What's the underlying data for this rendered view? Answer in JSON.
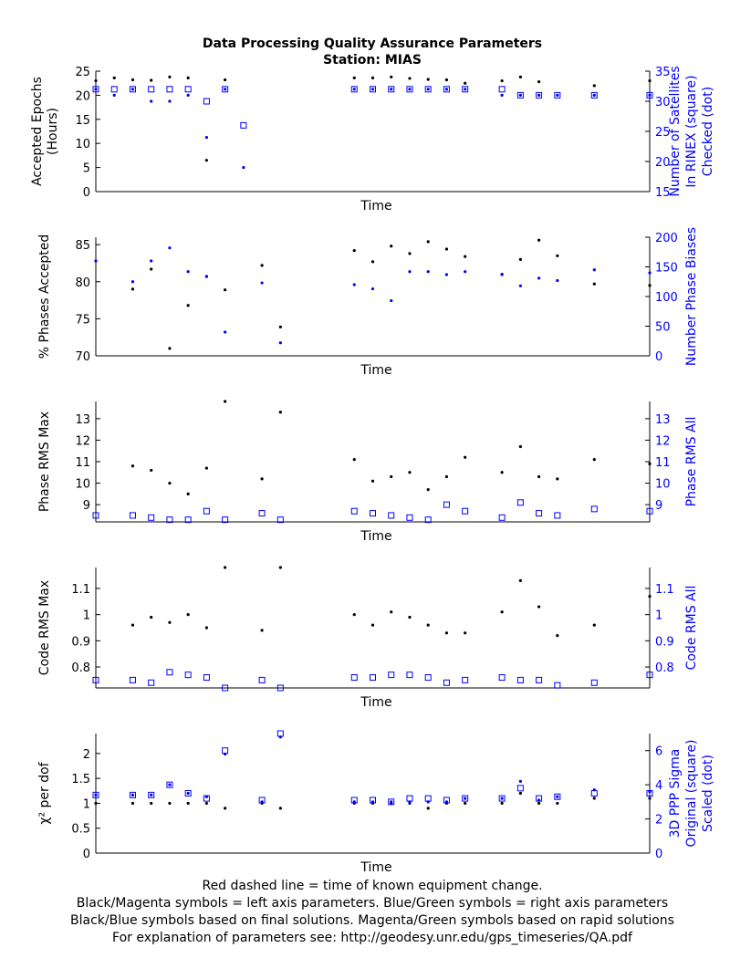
{
  "title_line1": "Data Processing Quality Assurance Parameters",
  "title_line2": "Station: MIAS",
  "footer": [
    "Red dashed line = time of known equipment change.",
    "Black/Magenta symbols = left axis parameters. Blue/Green symbols = right axis parameters",
    "Black/Blue symbols based on final solutions.  Magenta/Green symbols based on rapid solutions",
    "For explanation of parameters see: http://geodesy.unr.edu/gps_timeseries/QA.pdf"
  ],
  "colors": {
    "left": "#000000",
    "right": "#0000ff",
    "axis": "#000000"
  },
  "chart_data": [
    {
      "type": "scatter",
      "xlabel": "Time",
      "ylabel_left": [
        "Accepted Epochs",
        "(Hours)"
      ],
      "ylabel_right": [
        "Number of Satellites",
        "In RINEX (square)",
        "Checked (dot)"
      ],
      "ylim_left": [
        0,
        25
      ],
      "yticks_left": [
        0,
        5,
        10,
        15,
        20,
        25
      ],
      "ylim_right": [
        15,
        35
      ],
      "yticks_right": [
        15,
        20,
        25,
        30,
        35
      ],
      "x": [
        0,
        1,
        2,
        3,
        4,
        5,
        6,
        7,
        8,
        14,
        15,
        16,
        17,
        18,
        19,
        20,
        22,
        23,
        24,
        25,
        27,
        30
      ],
      "series": [
        {
          "axis": "left",
          "marker": "dot",
          "values": [
            23.0,
            23.6,
            23.2,
            23.1,
            23.8,
            23.6,
            6.5,
            23.2,
            null,
            23.6,
            23.6,
            23.8,
            23.5,
            23.3,
            23.2,
            22.5,
            23.0,
            23.8,
            22.8,
            null,
            22.0,
            23.0
          ]
        },
        {
          "axis": "right",
          "marker": "square",
          "values": [
            32,
            32,
            32,
            32,
            32,
            32,
            30,
            32,
            26,
            32,
            32,
            32,
            32,
            32,
            32,
            32,
            32,
            31,
            31,
            31,
            31,
            31
          ]
        },
        {
          "axis": "right",
          "marker": "dot",
          "values": [
            32,
            31,
            32,
            30,
            30,
            31,
            24,
            32,
            19,
            32,
            32,
            32,
            32,
            32,
            32,
            32,
            31,
            31,
            31,
            31,
            31,
            31
          ]
        }
      ]
    },
    {
      "type": "scatter",
      "xlabel": "Time",
      "ylabel_left": [
        "% Phases Accepted"
      ],
      "ylabel_right": [
        "Number Phase Biases"
      ],
      "ylim_left": [
        70,
        86
      ],
      "yticks_left": [
        70,
        75,
        80,
        85
      ],
      "ylim_right": [
        0,
        200
      ],
      "yticks_right": [
        0,
        50,
        100,
        150,
        200
      ],
      "x": [
        0,
        2,
        3,
        4,
        5,
        6,
        7,
        9,
        10,
        14,
        15,
        16,
        17,
        18,
        19,
        20,
        22,
        23,
        24,
        25,
        27,
        30
      ],
      "series": [
        {
          "axis": "left",
          "marker": "dot",
          "values": [
            null,
            79.0,
            81.7,
            71.0,
            76.8,
            80.7,
            78.9,
            82.2,
            73.9,
            84.2,
            82.7,
            84.8,
            83.8,
            85.4,
            84.4,
            83.4,
            81.0,
            83.0,
            85.6,
            83.5,
            79.7,
            79.5
          ]
        },
        {
          "axis": "right",
          "marker": "dot",
          "values": [
            160,
            125,
            160,
            182,
            142,
            134,
            40,
            123,
            22,
            120,
            113,
            93,
            142,
            142,
            137,
            142,
            137,
            118,
            131,
            127,
            145,
            140
          ]
        }
      ]
    },
    {
      "type": "scatter",
      "xlabel": "Time",
      "ylabel_left": [
        "Phase RMS Max"
      ],
      "ylabel_right": [
        "Phase RMS All"
      ],
      "ylim_left": [
        8.2,
        13.8
      ],
      "yticks_left": [
        9,
        10,
        11,
        12,
        13
      ],
      "ylim_right": [
        8.2,
        13.8
      ],
      "yticks_right": [
        9,
        10,
        11,
        12,
        13
      ],
      "x": [
        0,
        2,
        3,
        4,
        5,
        6,
        7,
        9,
        10,
        14,
        15,
        16,
        17,
        18,
        19,
        20,
        22,
        23,
        24,
        25,
        27,
        30
      ],
      "series": [
        {
          "axis": "left",
          "marker": "dot",
          "values": [
            null,
            10.8,
            10.6,
            10.0,
            9.5,
            10.7,
            13.8,
            10.2,
            13.3,
            11.1,
            10.1,
            10.3,
            10.5,
            9.7,
            10.3,
            11.2,
            10.5,
            11.7,
            10.3,
            10.2,
            11.1,
            10.9
          ]
        },
        {
          "axis": "right",
          "marker": "square",
          "values": [
            8.5,
            8.5,
            8.4,
            8.3,
            8.3,
            8.7,
            8.3,
            8.6,
            8.3,
            8.7,
            8.6,
            8.5,
            8.4,
            8.3,
            9.0,
            8.7,
            8.4,
            9.1,
            8.6,
            8.5,
            8.8,
            8.7
          ]
        }
      ]
    },
    {
      "type": "scatter",
      "xlabel": "Time",
      "ylabel_left": [
        "Code RMS Max"
      ],
      "ylabel_right": [
        "Code RMS All"
      ],
      "ylim_left": [
        0.72,
        1.18
      ],
      "yticks_left": [
        0.8,
        0.9,
        1,
        1.1
      ],
      "ylim_right": [
        0.72,
        1.18
      ],
      "yticks_right": [
        0.8,
        0.9,
        1,
        1.1
      ],
      "x": [
        0,
        2,
        3,
        4,
        5,
        6,
        7,
        9,
        10,
        14,
        15,
        16,
        17,
        18,
        19,
        20,
        22,
        23,
        24,
        25,
        27,
        30
      ],
      "series": [
        {
          "axis": "left",
          "marker": "dot",
          "values": [
            null,
            0.96,
            0.99,
            0.97,
            1.0,
            0.95,
            1.18,
            0.94,
            1.18,
            1.0,
            0.96,
            1.01,
            0.99,
            0.96,
            0.93,
            0.93,
            1.01,
            1.13,
            1.03,
            0.92,
            0.96,
            1.07
          ]
        },
        {
          "axis": "right",
          "marker": "square",
          "values": [
            0.75,
            0.75,
            0.74,
            0.78,
            0.77,
            0.76,
            0.72,
            0.75,
            0.72,
            0.76,
            0.76,
            0.77,
            0.77,
            0.76,
            0.74,
            0.75,
            0.76,
            0.75,
            0.75,
            0.73,
            0.74,
            0.77
          ]
        }
      ]
    },
    {
      "type": "scatter",
      "xlabel": "Time",
      "ylabel_left": [
        "χ² per dof"
      ],
      "ylabel_right": [
        "3D PPP Sigma",
        "Original (square)",
        "Scaled (dot)"
      ],
      "ylim_left": [
        0,
        2.4
      ],
      "yticks_left": [
        0,
        0.5,
        1,
        1.5,
        2
      ],
      "ylim_right": [
        0,
        7
      ],
      "yticks_right": [
        0,
        2,
        4,
        6
      ],
      "x": [
        0,
        2,
        3,
        4,
        5,
        6,
        7,
        9,
        10,
        14,
        15,
        16,
        17,
        18,
        19,
        20,
        22,
        23,
        24,
        25,
        27,
        30
      ],
      "series": [
        {
          "axis": "left",
          "marker": "dot",
          "values": [
            1.0,
            1.0,
            1.0,
            1.0,
            1.0,
            1.0,
            0.9,
            1.0,
            0.9,
            1.0,
            1.0,
            1.0,
            1.0,
            0.9,
            1.0,
            1.0,
            1.0,
            1.2,
            1.0,
            1.0,
            1.1,
            1.1
          ]
        },
        {
          "axis": "right",
          "marker": "square",
          "values": [
            3.4,
            3.4,
            3.4,
            4.0,
            3.5,
            3.2,
            6.0,
            3.1,
            7.0,
            3.1,
            3.1,
            3.0,
            3.2,
            3.2,
            3.1,
            3.2,
            3.2,
            3.8,
            3.2,
            3.3,
            3.5,
            3.5
          ]
        },
        {
          "axis": "right",
          "marker": "dot",
          "values": [
            3.4,
            3.4,
            3.4,
            4.0,
            3.5,
            3.3,
            5.8,
            3.0,
            6.8,
            3.0,
            3.0,
            3.0,
            3.0,
            3.0,
            3.0,
            3.2,
            3.2,
            4.2,
            3.1,
            3.3,
            3.7,
            3.6
          ]
        }
      ]
    }
  ]
}
